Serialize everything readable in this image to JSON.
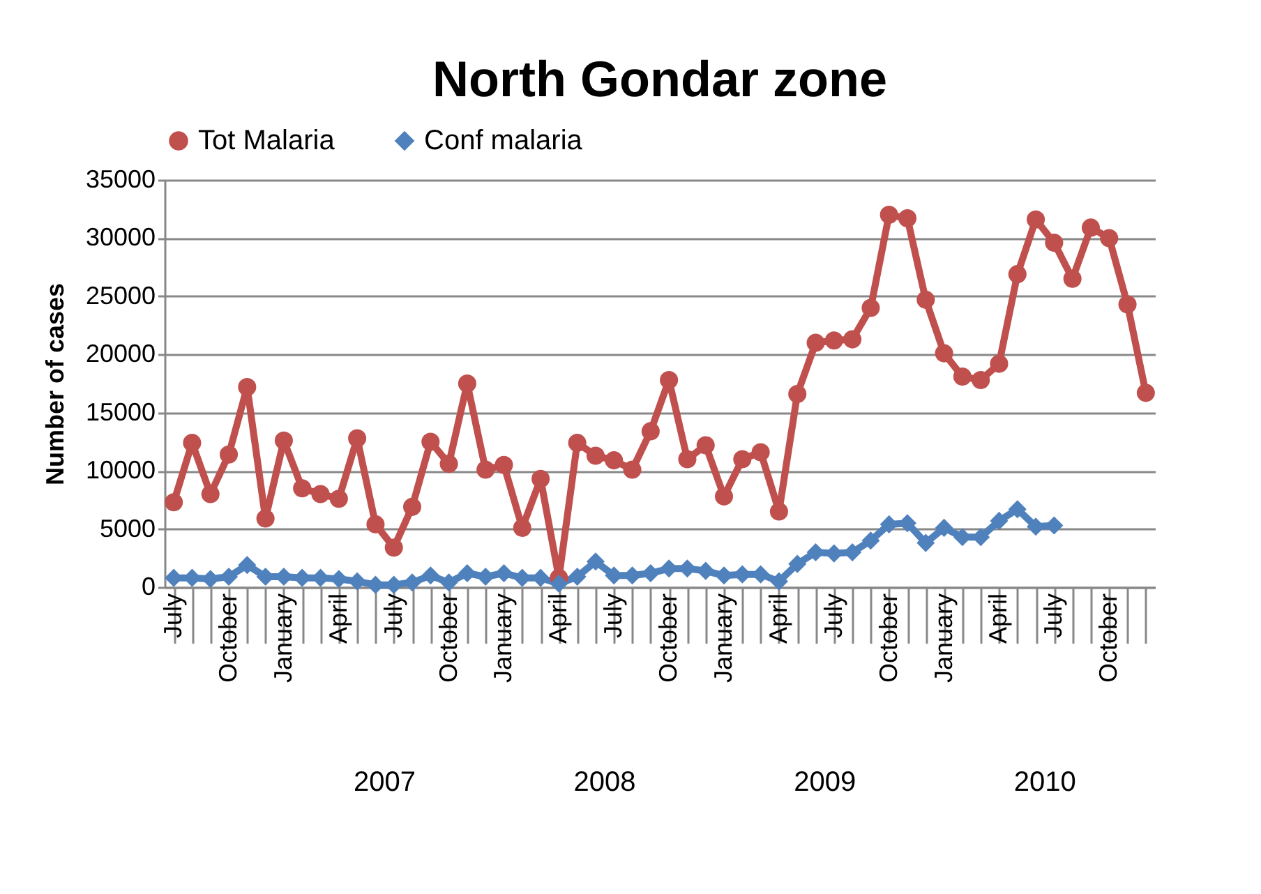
{
  "chart_data": {
    "type": "line",
    "title": "North Gondar zone",
    "ylabel": "Number of cases",
    "categories": [
      "July",
      null,
      null,
      "October",
      null,
      null,
      "January",
      null,
      null,
      "April",
      null,
      null,
      "July",
      null,
      null,
      "October",
      null,
      null,
      "January",
      null,
      null,
      "April",
      null,
      null,
      "July",
      null,
      null,
      "October",
      null,
      null,
      "January",
      null,
      null,
      "April",
      null,
      null,
      "July",
      null,
      null,
      "October",
      null,
      null,
      "January",
      null,
      null,
      "April",
      null,
      null,
      "July",
      null,
      null,
      "October",
      null,
      null
    ],
    "series": [
      {
        "name": "Tot Malaria",
        "color": "#c0504d",
        "marker": "circle",
        "values": [
          7300,
          12400,
          8000,
          11400,
          17200,
          5900,
          12600,
          8500,
          8000,
          7600,
          12800,
          5400,
          3400,
          6900,
          12500,
          10600,
          17500,
          10100,
          10500,
          5100,
          9300,
          800,
          12400,
          11300,
          10900,
          10100,
          13400,
          17800,
          11000,
          12200,
          7800,
          11000,
          11600,
          6500,
          16600,
          21000,
          21200,
          21300,
          24000,
          32000,
          31700,
          24700,
          20100,
          18100,
          17800,
          19200,
          26900,
          31600,
          29600,
          26500,
          30900,
          30000,
          24300,
          16700
        ]
      },
      {
        "name": "Conf malaria",
        "color": "#4f81bd",
        "marker": "diamond",
        "values": [
          800,
          800,
          700,
          900,
          1900,
          900,
          900,
          800,
          800,
          700,
          500,
          200,
          200,
          400,
          1000,
          400,
          1200,
          900,
          1200,
          800,
          800,
          300,
          900,
          2200,
          1000,
          1000,
          1200,
          1600,
          1600,
          1400,
          1000,
          1100,
          1100,
          500,
          2000,
          3000,
          2900,
          3000,
          4000,
          5400,
          5500,
          3800,
          5100,
          4300,
          4300,
          5700,
          6700,
          5200,
          5300,
          null,
          null,
          null,
          null,
          null
        ]
      }
    ],
    "ylim": [
      0,
      35000
    ],
    "yticks": [
      0,
      5000,
      10000,
      15000,
      20000,
      25000,
      30000,
      35000
    ],
    "grid": "y",
    "legend": "top",
    "annotations": [
      "2007",
      "2008",
      "2009",
      "2010"
    ]
  }
}
